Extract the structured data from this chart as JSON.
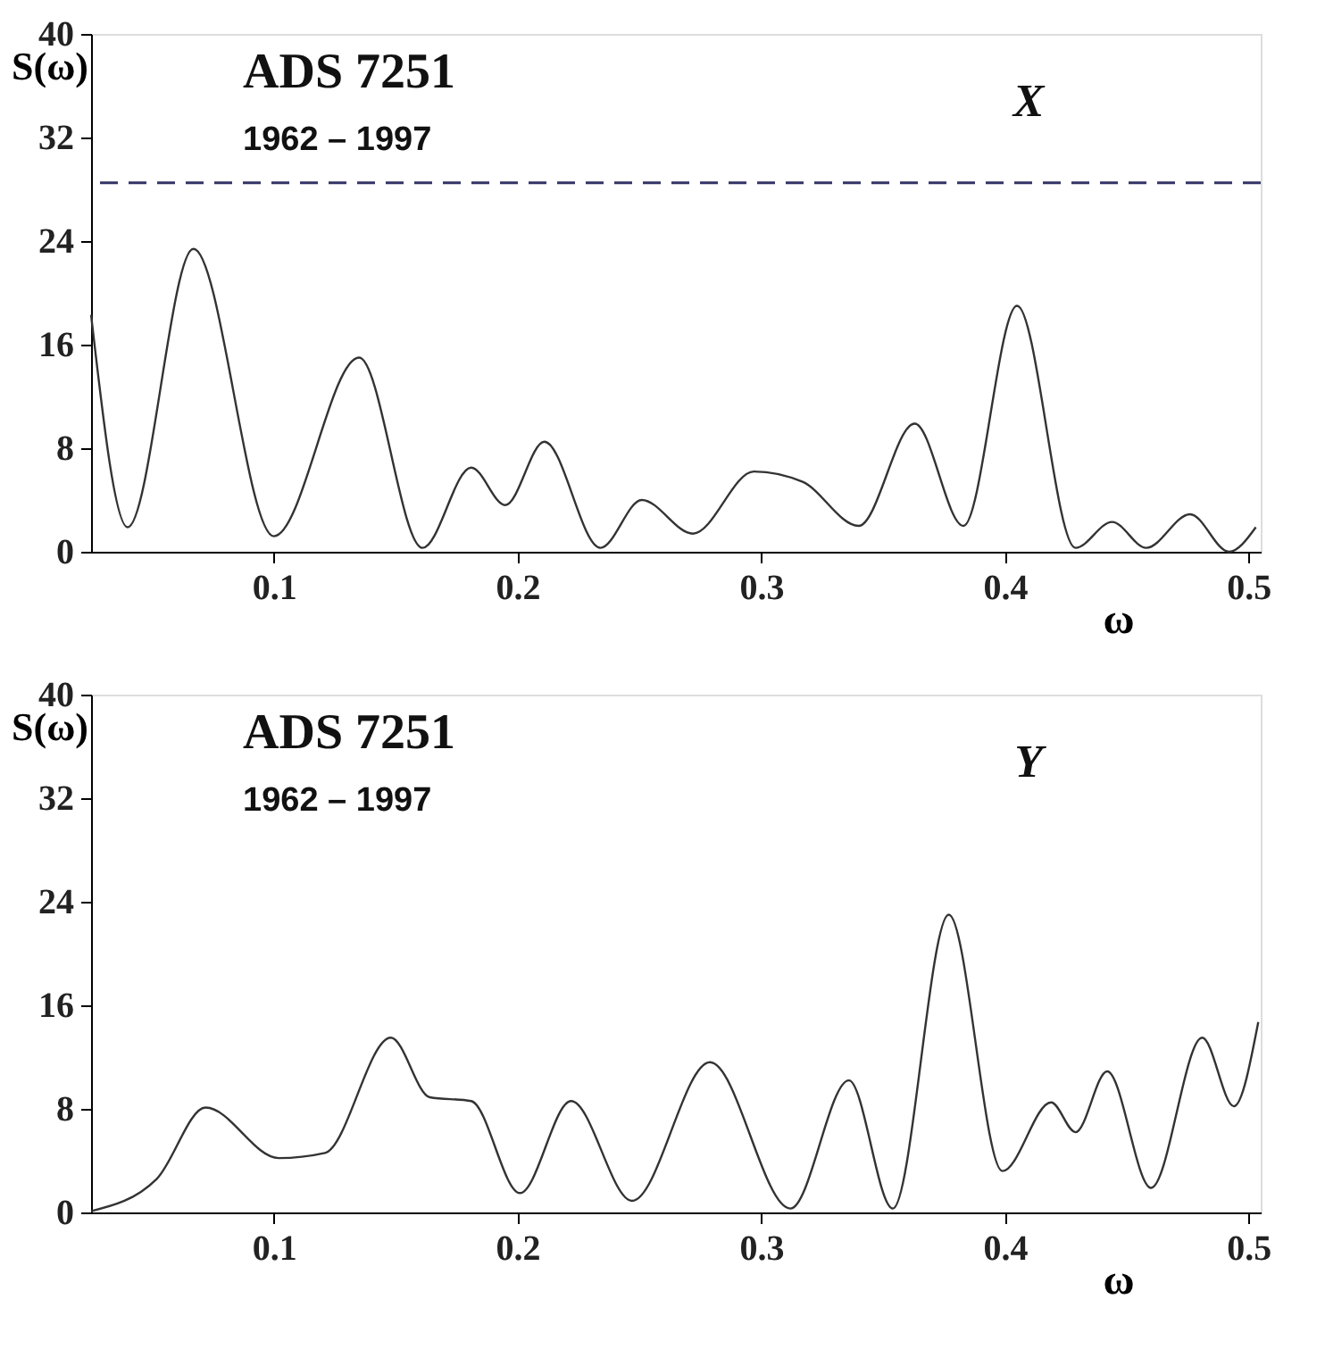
{
  "chart_data": [
    {
      "type": "line",
      "title": "ADS 7251",
      "subtitle": "1962 – 1997",
      "ylabel": "S(ω)",
      "xlabel": "ω",
      "annotations": [
        "X"
      ],
      "x": [
        0.025,
        0.04,
        0.067,
        0.1,
        0.135,
        0.161,
        0.181,
        0.195,
        0.211,
        0.234,
        0.251,
        0.272,
        0.297,
        0.317,
        0.34,
        0.363,
        0.383,
        0.405,
        0.429,
        0.444,
        0.458,
        0.476,
        0.492,
        0.503
      ],
      "series": [
        {
          "color": "#333333",
          "values": [
            18.3,
            1.9,
            23.4,
            1.2,
            15.0,
            0.3,
            6.5,
            3.6,
            8.5,
            0.3,
            4.0,
            1.4,
            6.2,
            5.4,
            2.0,
            9.9,
            2.0,
            19.0,
            0.3,
            2.3,
            0.3,
            2.9,
            0,
            1.9
          ]
        }
      ],
      "xlim": [
        0.025,
        0.505
      ],
      "xticks": [
        0.1,
        0.2,
        0.3,
        0.4,
        0.5
      ],
      "ylim": [
        0,
        40
      ],
      "yticks": [
        0,
        8,
        16,
        24,
        32,
        40
      ],
      "grid": false,
      "ref_lines": [
        {
          "axis": "y",
          "value": 28.5,
          "color": "#333366",
          "line_style": "dashed"
        }
      ]
    },
    {
      "type": "line",
      "title": "ADS 7251",
      "subtitle": "1962 – 1997",
      "ylabel": "S(ω)",
      "xlabel": "ω",
      "annotations": [
        "Y"
      ],
      "x": [
        0.025,
        0.052,
        0.072,
        0.102,
        0.121,
        0.148,
        0.164,
        0.181,
        0.201,
        0.222,
        0.247,
        0.279,
        0.312,
        0.336,
        0.354,
        0.377,
        0.399,
        0.419,
        0.429,
        0.442,
        0.46,
        0.481,
        0.494,
        0.504
      ],
      "series": [
        {
          "color": "#333333",
          "values": [
            0.1,
            2.6,
            8.1,
            4.2,
            4.6,
            13.5,
            8.9,
            8.6,
            1.5,
            8.6,
            0.9,
            11.6,
            0.3,
            10.2,
            0.3,
            23.0,
            3.2,
            8.5,
            6.2,
            10.9,
            1.9,
            13.5,
            8.2,
            14.7
          ]
        }
      ],
      "xlim": [
        0.025,
        0.505
      ],
      "xticks": [
        0.1,
        0.2,
        0.3,
        0.4,
        0.5
      ],
      "ylim": [
        0,
        40
      ],
      "yticks": [
        0,
        8,
        16,
        24,
        32,
        40
      ],
      "grid": false
    }
  ]
}
